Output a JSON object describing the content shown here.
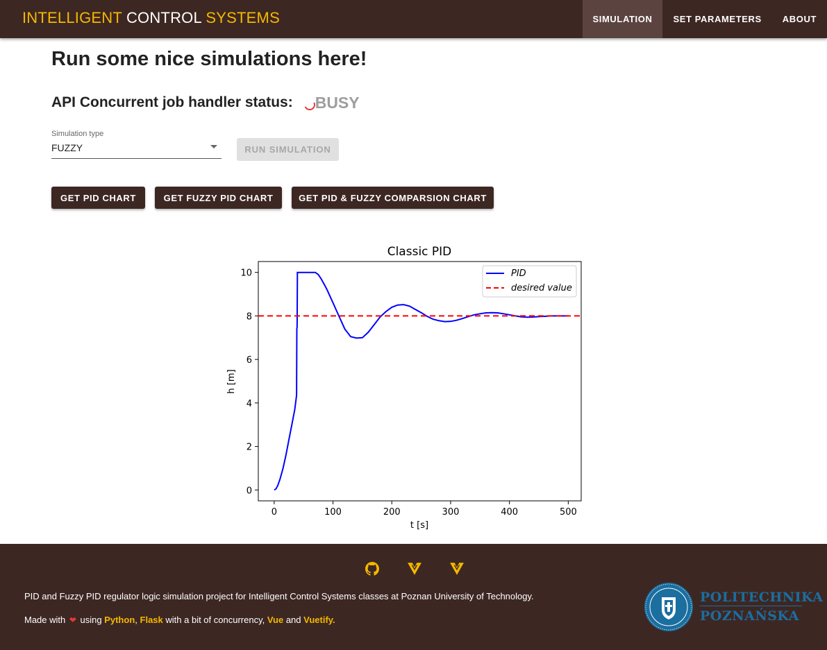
{
  "app": {
    "brand_part1": "INTELLIGENT",
    "brand_part2": "CONTROL",
    "brand_part3": "SYSTEMS"
  },
  "nav": {
    "items": [
      {
        "label": "SIMULATION",
        "active": true
      },
      {
        "label": "SET PARAMETERS",
        "active": false
      },
      {
        "label": "ABOUT",
        "active": false
      }
    ]
  },
  "main": {
    "title": "Run some nice simulations here!",
    "status_label": "API Concurrent job handler status:",
    "status_value": "BUSY",
    "simulation_type_label": "Simulation type",
    "simulation_type_value": "FUZZY",
    "run_button": "RUN SIMULATION",
    "buttons": [
      "GET PID CHART",
      "GET FUZZY PID CHART",
      "GET PID & FUZZY COMPARSION CHART"
    ]
  },
  "chart_data": {
    "type": "line",
    "title": "Classic PID",
    "xlabel": "t [s]",
    "ylabel": "h [m]",
    "xlim": [
      -27,
      522
    ],
    "ylim": [
      -0.5,
      10.5
    ],
    "x_ticks": [
      0,
      100,
      200,
      300,
      400,
      500
    ],
    "y_ticks": [
      0,
      2,
      4,
      6,
      8,
      10
    ],
    "grid": false,
    "legend_position": "top-right",
    "series": [
      {
        "name": "PID",
        "style": "solid",
        "color": "#0000ff",
        "x": [
          0,
          3,
          6,
          10,
          15,
          20,
          25,
          30,
          35,
          38,
          38.5,
          39,
          39.5,
          40,
          45,
          50,
          55,
          60,
          65,
          70,
          75,
          80,
          85,
          90,
          95,
          100,
          105,
          110,
          115,
          120,
          130,
          140,
          150,
          160,
          170,
          180,
          190,
          200,
          210,
          220,
          230,
          240,
          250,
          260,
          270,
          280,
          290,
          300,
          310,
          320,
          330,
          340,
          350,
          360,
          370,
          380,
          390,
          400,
          410,
          420,
          430,
          440,
          450,
          460,
          470,
          480,
          490,
          500
        ],
        "y": [
          0,
          0.05,
          0.2,
          0.5,
          1.0,
          1.6,
          2.3,
          3.0,
          3.7,
          4.35,
          7.4,
          7.5,
          10,
          10,
          10,
          10,
          10,
          10,
          10,
          10,
          9.9,
          9.7,
          9.45,
          9.2,
          8.9,
          8.6,
          8.3,
          8.0,
          7.7,
          7.4,
          7.05,
          6.98,
          7.0,
          7.25,
          7.6,
          7.95,
          8.2,
          8.4,
          8.5,
          8.52,
          8.45,
          8.3,
          8.15,
          7.98,
          7.85,
          7.78,
          7.74,
          7.75,
          7.8,
          7.88,
          7.97,
          8.05,
          8.1,
          8.14,
          8.15,
          8.14,
          8.1,
          8.05,
          8.0,
          7.96,
          7.94,
          7.95,
          7.97,
          7.98,
          8.0,
          8.0,
          8.0,
          8.0
        ]
      },
      {
        "name": "desired value",
        "style": "dashed",
        "color": "#ff0000",
        "x": [
          -27,
          522
        ],
        "y": [
          8,
          8
        ]
      }
    ]
  },
  "footer": {
    "icons": [
      "github-icon",
      "vuetify-icon",
      "vuetify-icon"
    ],
    "line1": "PID and Fuzzy PID regulator logic simulation project for Intelligent Control Systems classes at Poznan University of Technology.",
    "made_with": "Made with",
    "using": "using",
    "python": "Python",
    "comma": ",",
    "flask": "Flask",
    "with_concurrency": "with a bit of concurrency,",
    "vue": "Vue",
    "and": "and",
    "vuetify": "Vuetify.",
    "logo_line1": "POLITECHNIKA",
    "logo_line2": "POZNAŃSKA"
  },
  "colors": {
    "appbar": "#3d2723",
    "accent": "#f5b800",
    "disabled_bg": "#e0e0e0"
  }
}
